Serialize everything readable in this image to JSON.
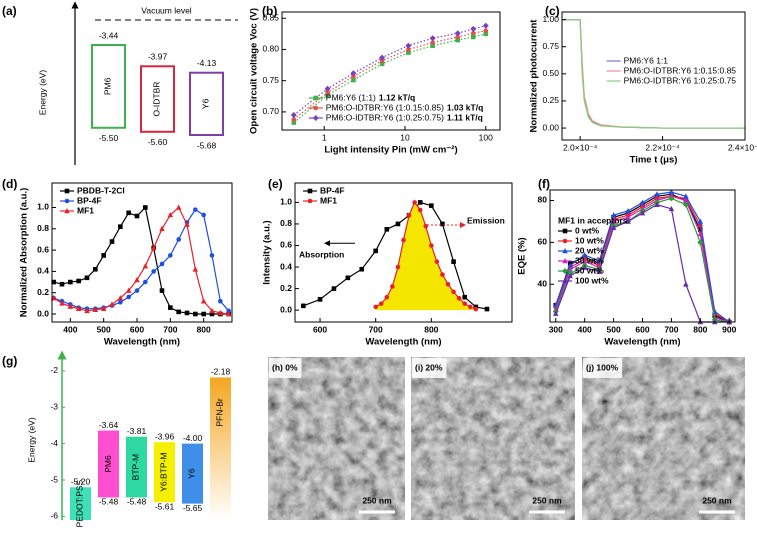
{
  "chart_data": [
    {
      "type": "energy-diagram",
      "panel_label": "(a)",
      "ylabel": "Energy (eV)",
      "reference_label": "Vacuum level",
      "bar_style": "outline",
      "series": [
        {
          "name": "PM6",
          "color": "#3cb34a",
          "values": [
            -3.44,
            -5.5
          ],
          "value_labels": [
            "-3.44",
            "-5.50"
          ]
        },
        {
          "name": "O-IDTBR",
          "color": "#d7263d",
          "values": [
            -3.97,
            -5.6
          ],
          "value_labels": [
            "-3.97",
            "-5.60"
          ]
        },
        {
          "name": "Y6",
          "color": "#7b3fa8",
          "values": [
            -4.13,
            -5.68
          ],
          "value_labels": [
            "-4.13",
            "-5.68"
          ]
        }
      ]
    },
    {
      "type": "line",
      "panel_label": "(b)",
      "ylabel": "Open circuit voltage Voc (V)",
      "xlabel": "Light intensity Pin (mW cm⁻²)",
      "xscale": "log",
      "xlim": [
        0.3,
        150
      ],
      "ylim": [
        0.671,
        0.86
      ],
      "xticks": [
        1,
        10,
        100
      ],
      "yticks": [
        {
          "value": 0.7,
          "label": "0.70"
        },
        0.75,
        {
          "value": 0.8,
          "label": "0.80"
        },
        0.85
      ],
      "line_style": "dotted",
      "legend": "lower-right",
      "x": [
        0.42,
        1.1,
        2.3,
        5.2,
        11,
        22,
        45,
        70,
        100
      ],
      "series": [
        {
          "name": "PM6:Y6 (1:1)",
          "ideality_label": "1.12 kT/q",
          "color": "#3cb34a",
          "marker": "square",
          "values": [
            0.683,
            0.727,
            0.751,
            0.777,
            0.795,
            0.806,
            0.815,
            0.82,
            0.825
          ]
        },
        {
          "name": "PM6:O-IDTBR:Y6 (1:0.15:0.85)",
          "ideality_label": "1.03 kT/q",
          "color": "#e8504a",
          "marker": "circle",
          "values": [
            0.688,
            0.731,
            0.757,
            0.782,
            0.8,
            0.811,
            0.82,
            0.826,
            0.83
          ]
        },
        {
          "name": "PM6:O-IDTBR:Y6 (1:0.25:0.75)",
          "ideality_label": "1.11 kT/q",
          "color": "#7b3fbf",
          "marker": "diamond",
          "values": [
            0.695,
            0.737,
            0.762,
            0.787,
            0.806,
            0.818,
            0.826,
            0.833,
            0.838
          ]
        }
      ]
    },
    {
      "type": "line",
      "panel_label": "(c)",
      "ylabel": "Normalized photocurrent",
      "xlabel": "Time t (μs)",
      "xlim": [
        0.0001956,
        0.00024
      ],
      "ylim": [
        -0.11,
        1.07
      ],
      "xticks": [
        {
          "value": 0.0002,
          "label": "2.0×10⁻⁴"
        },
        {
          "value": 0.00022,
          "label": "2.2×10⁻⁴"
        },
        {
          "value": 0.00024,
          "label": "2.4×10⁻⁴"
        }
      ],
      "yticks": [
        {
          "value": 0,
          "label": "0.00"
        },
        0.25,
        {
          "value": 0.5,
          "label": "0.50"
        },
        0.75,
        {
          "value": 1,
          "label": "1.00"
        }
      ],
      "legend": "center-right",
      "x": [
        0.0001956,
        0.0001995,
        0.0002,
        0.0002005,
        0.000201,
        0.000202,
        0.000203,
        0.000205,
        0.00021,
        0.00022,
        0.00023,
        0.00024
      ],
      "series": [
        {
          "name": "PM6:Y6 1:1",
          "color": "#7a6fd0",
          "values": [
            1,
            1,
            1,
            0.55,
            0.28,
            0.12,
            0.06,
            0.025,
            0.01,
            0,
            0,
            0
          ]
        },
        {
          "name": "PM6:O-IDTBR:Y6 1:0.15:0.85",
          "color": "#f08a8a",
          "values": [
            1,
            1,
            1,
            0.6,
            0.3,
            0.13,
            0.065,
            0.03,
            0.01,
            0,
            0,
            0
          ]
        },
        {
          "name": "PM6:O-IDTBR:Y6 1:0.25:0.75",
          "color": "#7ed37e",
          "values": [
            1,
            1,
            1,
            0.5,
            0.25,
            0.1,
            0.05,
            0.02,
            0.008,
            0,
            0,
            0
          ]
        }
      ]
    },
    {
      "type": "line",
      "panel_label": "(d)",
      "ylabel": "Normalized Absorption (a.u.)",
      "xlabel": "Wavelength (nm)",
      "xlim": [
        345,
        885
      ],
      "ylim": [
        -0.075,
        1.23
      ],
      "xticks": [
        400,
        500,
        600,
        700,
        800
      ],
      "yticks": [
        {
          "value": 0,
          "label": "0.0"
        },
        0.2,
        0.4,
        0.6,
        0.8,
        {
          "value": 1,
          "label": "1.0"
        }
      ],
      "legend": "upper-left",
      "x": [
        350,
        375,
        400,
        425,
        450,
        475,
        500,
        525,
        550,
        575,
        600,
        625,
        650,
        675,
        700,
        725,
        750,
        775,
        800,
        825,
        850,
        875
      ],
      "series": [
        {
          "name": "PBDB-T-2Cl",
          "color": "#000000",
          "marker": "square",
          "values": [
            0.3,
            0.28,
            0.3,
            0.31,
            0.34,
            0.42,
            0.55,
            0.68,
            0.82,
            0.95,
            0.92,
            1.0,
            0.62,
            0.22,
            0.06,
            0.02,
            0.01,
            0,
            0,
            0,
            0,
            0
          ]
        },
        {
          "name": "BP-4F",
          "color": "#1f4fe0",
          "marker": "circle",
          "values": [
            0.15,
            0.12,
            0.09,
            0.06,
            0.05,
            0.05,
            0.06,
            0.08,
            0.11,
            0.16,
            0.22,
            0.3,
            0.4,
            0.47,
            0.55,
            0.7,
            0.86,
            0.98,
            0.93,
            0.55,
            0.12,
            0.03
          ]
        },
        {
          "name": "MF1",
          "color": "#e8202a",
          "marker": "triangle",
          "values": [
            0.15,
            0.1,
            0.07,
            0.05,
            0.03,
            0.04,
            0.05,
            0.09,
            0.15,
            0.22,
            0.32,
            0.45,
            0.62,
            0.8,
            0.93,
            1.0,
            0.84,
            0.42,
            0.12,
            0.03,
            0.01,
            0
          ]
        }
      ]
    },
    {
      "type": "line",
      "panel_label": "(e)",
      "ylabel": "Intensity (a.u.)",
      "xlabel": "Wavelength (nm)",
      "xlim": [
        555,
        945
      ],
      "ylim": [
        -0.11,
        1.18
      ],
      "xticks": [
        600,
        700,
        800
      ],
      "yticks": [
        {
          "value": 0,
          "label": "0.0"
        },
        0.2,
        0.4,
        0.6,
        0.8,
        {
          "value": 1,
          "label": "1.0"
        }
      ],
      "legend": "upper-left",
      "annotations": [
        {
          "text": "Absorption",
          "color": "#000000"
        },
        {
          "text": "Emission",
          "color": "#e8202a"
        }
      ],
      "series": [
        {
          "name": "BP-4F",
          "color": "#000000",
          "marker": "square",
          "x": [
            570,
            600,
            625,
            650,
            675,
            700,
            720,
            740,
            760,
            780,
            800,
            820,
            840,
            860,
            880,
            900
          ],
          "values": [
            0.04,
            0.1,
            0.2,
            0.3,
            0.38,
            0.55,
            0.75,
            0.8,
            0.88,
            1.0,
            0.97,
            0.8,
            0.45,
            0.12,
            0.03,
            0.01
          ]
        },
        {
          "name": "MF1",
          "color": "#e8202a",
          "marker": "circle",
          "fill": "#f5e600",
          "x": [
            700,
            710,
            720,
            730,
            740,
            750,
            760,
            770,
            780,
            790,
            800,
            810,
            820,
            830,
            840,
            850,
            860,
            870,
            880
          ],
          "values": [
            0.03,
            0.06,
            0.12,
            0.22,
            0.4,
            0.65,
            0.88,
            1.0,
            0.93,
            0.78,
            0.6,
            0.45,
            0.33,
            0.24,
            0.17,
            0.11,
            0.06,
            0.03,
            0.01
          ]
        }
      ]
    },
    {
      "type": "line",
      "panel_label": "(f)",
      "ylabel": "EQE (%)",
      "xlabel": "Wavelength (nm)",
      "xlim": [
        280,
        920
      ],
      "ylim": [
        22,
        85
      ],
      "xticks": [
        300,
        400,
        500,
        600,
        700,
        800,
        900
      ],
      "yticks": [
        40,
        60,
        80
      ],
      "legend": "center-left",
      "legend_title": "MF1 in acceptors",
      "x": [
        300,
        350,
        400,
        450,
        500,
        550,
        600,
        650,
        700,
        750,
        800,
        850,
        900
      ],
      "series": [
        {
          "name": "0 wt%",
          "color": "#000000",
          "marker": "square",
          "values": [
            30,
            50,
            53,
            50,
            72,
            74,
            78,
            82,
            83,
            80,
            66,
            25,
            22
          ]
        },
        {
          "name": "10 wt%",
          "color": "#e8202a",
          "marker": "circle",
          "values": [
            29,
            48,
            52,
            49,
            71,
            73,
            77,
            81,
            82,
            81,
            68,
            26,
            22
          ]
        },
        {
          "name": "20 wt%",
          "color": "#1f4fe0",
          "marker": "triangle",
          "values": [
            30,
            49,
            54,
            51,
            73,
            75,
            79,
            83,
            84,
            82,
            70,
            27,
            22
          ]
        },
        {
          "name": "30 wt%",
          "color": "#d020c8",
          "marker": "triangle",
          "values": [
            28,
            47,
            51,
            48,
            70,
            72,
            76,
            80,
            82,
            80,
            64,
            24,
            22
          ]
        },
        {
          "name": "50 wt%",
          "color": "#2a9d3a",
          "marker": "diamond",
          "values": [
            27,
            45,
            49,
            47,
            68,
            70,
            75,
            79,
            81,
            78,
            60,
            23,
            22
          ]
        },
        {
          "name": "100 wt%",
          "color": "#6a2aa8",
          "marker": "triangle",
          "values": [
            26,
            44,
            48,
            46,
            67,
            70,
            74,
            78,
            76,
            40,
            22,
            22,
            22
          ]
        }
      ]
    },
    {
      "type": "energy-diagram",
      "panel_label": "(g)",
      "ylabel": "Energy (eV)",
      "axis_color": "#3cb34a",
      "bar_style": "filled",
      "ylim": [
        -6.1,
        -1.7
      ],
      "yticks": [
        -2,
        -3,
        -4,
        -5,
        -6
      ],
      "series": [
        {
          "name": "PEDOT:PSS",
          "color": "#3fe0b5",
          "values": [
            -5.2,
            null
          ],
          "value_labels": [
            "-5.20",
            null
          ]
        },
        {
          "name": "PM6",
          "color": "#ff4fd0",
          "values": [
            -3.64,
            -5.48
          ],
          "value_labels": [
            "-3.64",
            "-5.48"
          ]
        },
        {
          "name": "BTP-M",
          "color": "#2ed8a0",
          "values": [
            -3.81,
            -5.48
          ],
          "value_labels": [
            "-3.81",
            "-5.48"
          ]
        },
        {
          "name": "Y6:BTP-M",
          "color": "#f5f000",
          "values": [
            -3.96,
            -5.61
          ],
          "value_labels": [
            "-3.96",
            "-5.61"
          ]
        },
        {
          "name": "Y6",
          "color": "#3f8fe8",
          "values": [
            -4.0,
            -5.65
          ],
          "value_labels": [
            "-4.00",
            "-5.65"
          ]
        },
        {
          "name": "PFN-Br",
          "color": "#f5a623",
          "fade": true,
          "values": [
            -2.18,
            null
          ],
          "value_labels": [
            "-2.18",
            null
          ]
        }
      ]
    },
    {
      "type": "image",
      "panel_label": "(h) 0%",
      "scale_bar": "250 nm"
    },
    {
      "type": "image",
      "panel_label": "(i) 20%",
      "scale_bar": "250 nm"
    },
    {
      "type": "image",
      "panel_label": "(j) 100%",
      "scale_bar": "250 nm"
    }
  ]
}
